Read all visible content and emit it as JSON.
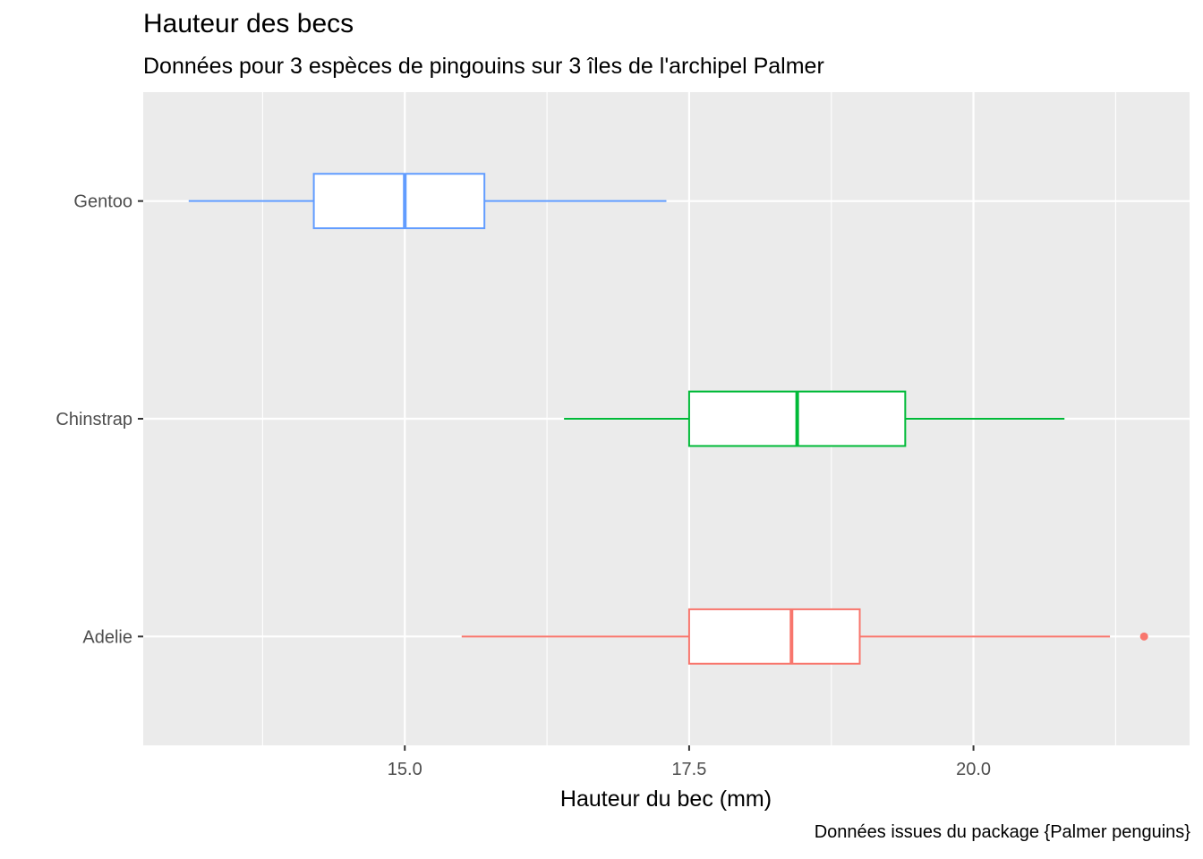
{
  "chart_data": {
    "type": "boxplot",
    "orientation": "horizontal",
    "title": "Hauteur des becs",
    "subtitle": "Données pour 3 espèces de pingouins sur 3 îles de l'archipel Palmer",
    "caption": "Données issues du package {Palmer penguins}",
    "xlabel": "Hauteur du bec (mm)",
    "ylabel": "",
    "xlim": [
      12.7,
      21.9
    ],
    "x_ticks": [
      15.0,
      17.5,
      20.0
    ],
    "x_tick_labels": [
      "15.0",
      "17.5",
      "20.0"
    ],
    "grid": true,
    "legend": "none",
    "categories": [
      "Adelie",
      "Chinstrap",
      "Gentoo"
    ],
    "boxes": [
      {
        "category": "Adelie",
        "color": "#F8766D",
        "whisker_low": 15.5,
        "q1": 17.5,
        "median": 18.4,
        "q3": 19.0,
        "whisker_high": 21.2,
        "outliers": [
          21.5
        ]
      },
      {
        "category": "Chinstrap",
        "color": "#00BA38",
        "whisker_low": 16.4,
        "q1": 17.5,
        "median": 18.45,
        "q3": 19.4,
        "whisker_high": 20.8,
        "outliers": []
      },
      {
        "category": "Gentoo",
        "color": "#619CFF",
        "whisker_low": 13.1,
        "q1": 14.2,
        "median": 15.0,
        "q3": 15.7,
        "whisker_high": 17.3,
        "outliers": []
      }
    ]
  }
}
